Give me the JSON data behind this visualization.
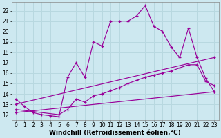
{
  "background_color": "#cde8f0",
  "line_color": "#990099",
  "grid_color": "#b8d8e0",
  "xlabel": "Windchill (Refroidissement éolien,°C)",
  "xlabel_fontsize": 6.5,
  "tick_fontsize": 5.5,
  "ylim": [
    11.5,
    22.8
  ],
  "xlim": [
    -0.5,
    23.5
  ],
  "yticks": [
    12,
    13,
    14,
    15,
    16,
    17,
    18,
    19,
    20,
    21,
    22
  ],
  "xticks": [
    0,
    1,
    2,
    3,
    4,
    5,
    6,
    7,
    8,
    9,
    10,
    11,
    12,
    13,
    14,
    15,
    16,
    17,
    18,
    19,
    20,
    21,
    22,
    23
  ],
  "line1_x": [
    0,
    1,
    2,
    3,
    4,
    5,
    6,
    7,
    8,
    9,
    10,
    11,
    12,
    13,
    14,
    15,
    16,
    17,
    18,
    19,
    20,
    21,
    22,
    23
  ],
  "line1_y": [
    13.5,
    12.8,
    12.2,
    12.0,
    11.9,
    11.8,
    15.6,
    17.0,
    15.6,
    19.0,
    18.6,
    21.0,
    21.0,
    21.0,
    21.5,
    22.5,
    20.5,
    20.0,
    18.5,
    17.5,
    20.3,
    17.5,
    15.5,
    14.2
  ],
  "line2_x": [
    0,
    23
  ],
  "line2_y": [
    13.0,
    17.5
  ],
  "line3_x": [
    0,
    5,
    6,
    7,
    8,
    9,
    10,
    11,
    12,
    13,
    14,
    15,
    16,
    17,
    18,
    19,
    20,
    21,
    22,
    23
  ],
  "line3_y": [
    12.5,
    12.0,
    12.5,
    13.5,
    13.2,
    13.8,
    14.0,
    14.3,
    14.6,
    15.0,
    15.3,
    15.6,
    15.8,
    16.0,
    16.2,
    16.5,
    16.8,
    16.8,
    15.2,
    14.8
  ],
  "line4_x": [
    0,
    23
  ],
  "line4_y": [
    12.2,
    14.2
  ]
}
